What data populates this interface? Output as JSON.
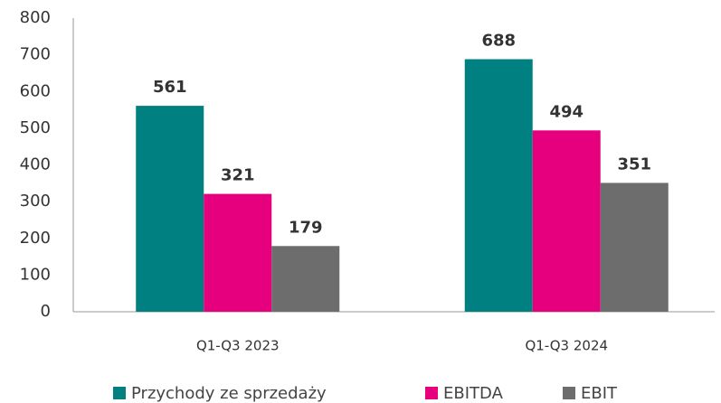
{
  "chart_data": {
    "type": "bar",
    "categories": [
      "Q1-Q3 2023",
      "Q1-Q3 2024"
    ],
    "series": [
      {
        "name": "Przychody ze sprzedaży",
        "color": "#008080",
        "values": [
          561,
          688
        ]
      },
      {
        "name": "EBITDA",
        "color": "#e6007e",
        "values": [
          321,
          494
        ]
      },
      {
        "name": "EBIT",
        "color": "#6d6d6d",
        "values": [
          179,
          351
        ]
      }
    ],
    "ylim": [
      0,
      800
    ],
    "yticks": [
      0,
      100,
      200,
      300,
      400,
      500,
      600,
      700,
      800
    ],
    "grid": false,
    "legend": "bottom"
  }
}
